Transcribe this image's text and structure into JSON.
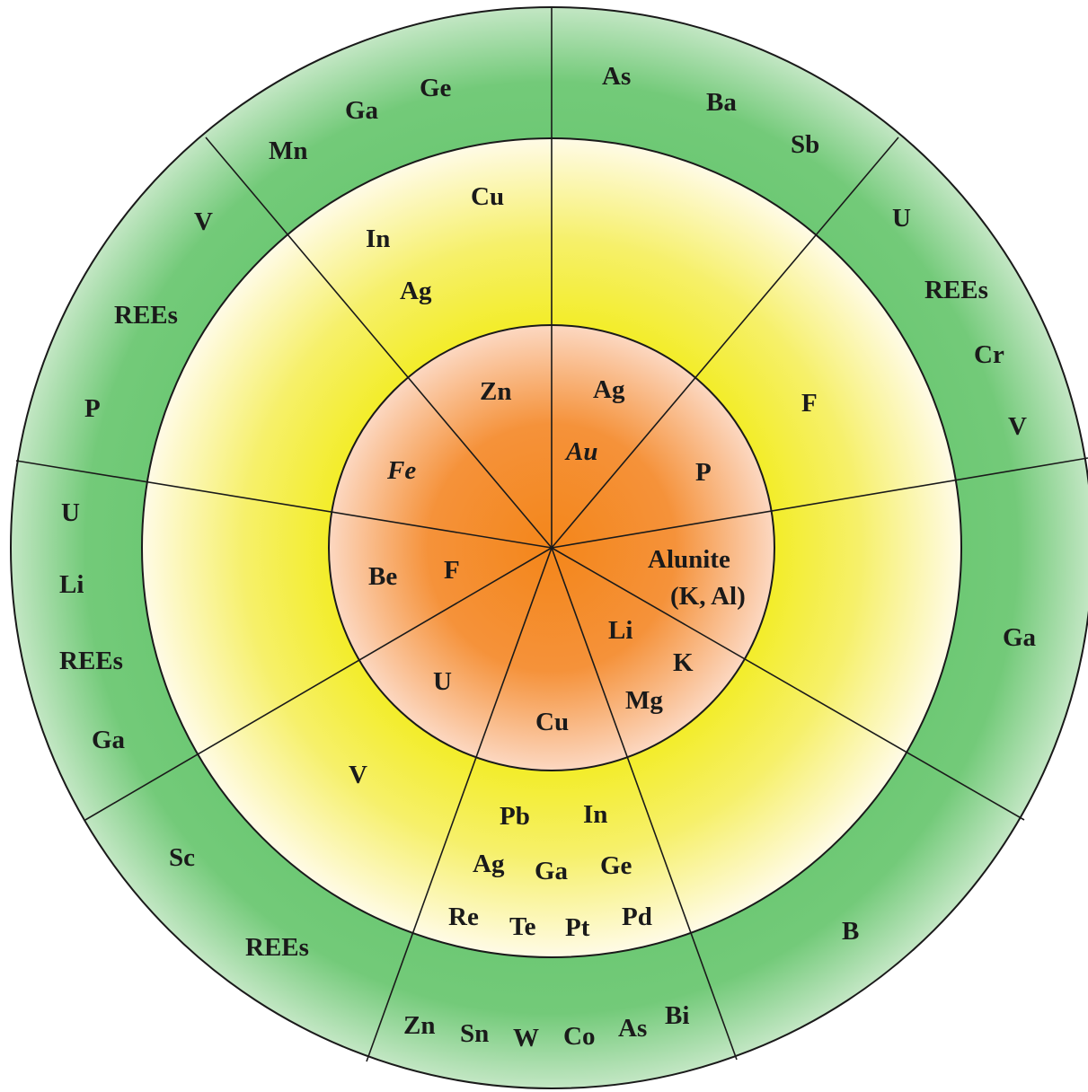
{
  "colors": {
    "outer_ring": "#6cc873",
    "outer_ring_edge": "#bfe5c0",
    "middle_ring": "#f3ee2a",
    "middle_ring_light": "#fffbe6",
    "core": "#f48a1e",
    "core_light": "#fbdcc6",
    "lines": "#1a1a1a"
  },
  "core": {
    "labels": [
      "Zn",
      "Ag",
      "Au",
      "Fe",
      "P",
      "Be",
      "F",
      "Alunite",
      "(K, Al)",
      "Li",
      "K",
      "Mg",
      "U",
      "Cu"
    ]
  },
  "middle": {
    "labels": [
      "Cu",
      "In",
      "Ag",
      "F",
      "V",
      "Pb",
      "In",
      "Ag",
      "Ga",
      "Ge",
      "Re",
      "Te",
      "Pt",
      "Pd"
    ]
  },
  "outer": {
    "labels": [
      "Ge",
      "Ga",
      "Mn",
      "As",
      "Ba",
      "Sb",
      "U",
      "REEs",
      "Cr",
      "V",
      "V",
      "REEs",
      "P",
      "U",
      "Li",
      "REEs",
      "Ga",
      "Ga",
      "Sc",
      "REEs",
      "Zn",
      "Sn",
      "W",
      "Co",
      "As",
      "Bi",
      "B"
    ]
  }
}
